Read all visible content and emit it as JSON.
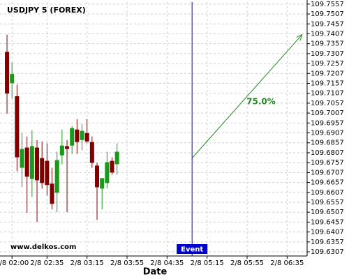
{
  "chart_data": {
    "type": "candlestick",
    "title": "USDJPY 5 (FOREX)",
    "x_label": "Date",
    "watermark": "www.delkos.com",
    "x": [
      -5,
      0,
      5,
      10,
      15,
      20,
      25,
      30,
      35,
      40,
      45,
      50,
      55,
      60,
      65,
      70,
      75,
      80,
      85,
      90,
      95,
      100,
      105
    ],
    "open": [
      109.7316,
      109.7158,
      109.7092,
      109.6731,
      109.6833,
      109.6675,
      109.6833,
      109.678,
      109.6766,
      109.6651,
      109.6605,
      109.6794,
      109.684,
      109.6843,
      109.6924,
      109.6871,
      109.6906,
      109.6861,
      109.6742,
      109.6626,
      109.6654,
      109.6766,
      109.6749
    ],
    "high": [
      109.7403,
      109.7263,
      109.7151,
      109.6906,
      109.6889,
      109.692,
      109.6871,
      109.6864,
      109.6854,
      109.6731,
      109.6812,
      109.6924,
      109.6871,
      109.6941,
      109.6976,
      109.6952,
      109.6976,
      109.6889,
      109.6756,
      109.6679,
      109.6812,
      109.6784,
      109.6854
    ],
    "low": [
      109.7004,
      109.7081,
      109.6714,
      109.6633,
      109.6504,
      109.6584,
      109.6458,
      109.6626,
      109.6591,
      109.6521,
      109.6507,
      109.6749,
      109.6507,
      109.6801,
      109.6801,
      109.6819,
      109.6854,
      109.6731,
      109.6469,
      109.6521,
      109.6626,
      109.6696,
      109.6696
    ],
    "close": [
      109.7106,
      109.7204,
      109.6784,
      109.6826,
      109.6686,
      109.684,
      109.6668,
      109.6654,
      109.6644,
      109.6549,
      109.677,
      109.6843,
      109.6826,
      109.6931,
      109.6861,
      109.6917,
      109.6864,
      109.6756,
      109.6633,
      109.6679,
      109.6759,
      109.6707,
      109.6812
    ],
    "up_color": "#1a9a1a",
    "down_color": "#800000",
    "xlim": [
      -12,
      295
    ],
    "xticks": [
      {
        "value": 0,
        "label": "2/8 02:00"
      },
      {
        "value": 35,
        "label": "2/8 02:35"
      },
      {
        "value": 75,
        "label": "2/8 03:15"
      },
      {
        "value": 115,
        "label": "2/8 03:55"
      },
      {
        "value": 155,
        "label": "2/8 04:35"
      },
      {
        "value": 195,
        "label": "2/8 05:15"
      },
      {
        "value": 235,
        "label": "2/8 05:55"
      },
      {
        "value": 275,
        "label": "2/8 06:35"
      }
    ],
    "ylim": [
      109.6286,
      109.7567
    ],
    "yticks": [
      109.6307,
      109.6357,
      109.6407,
      109.6457,
      109.6507,
      109.6557,
      109.6607,
      109.6657,
      109.6707,
      109.6757,
      109.6807,
      109.6857,
      109.6907,
      109.6957,
      109.7007,
      109.7057,
      109.7107,
      109.7157,
      109.7207,
      109.7257,
      109.7307,
      109.7357,
      109.7407,
      109.7457,
      109.7507,
      109.7557
    ],
    "grid": true,
    "event": {
      "x": 180,
      "label": "Event",
      "color": "#0000cc"
    },
    "arrow": {
      "x": [
        180,
        290
      ],
      "y": [
        109.678,
        109.7403
      ],
      "label": "75.0%",
      "color": "#228b22"
    }
  }
}
